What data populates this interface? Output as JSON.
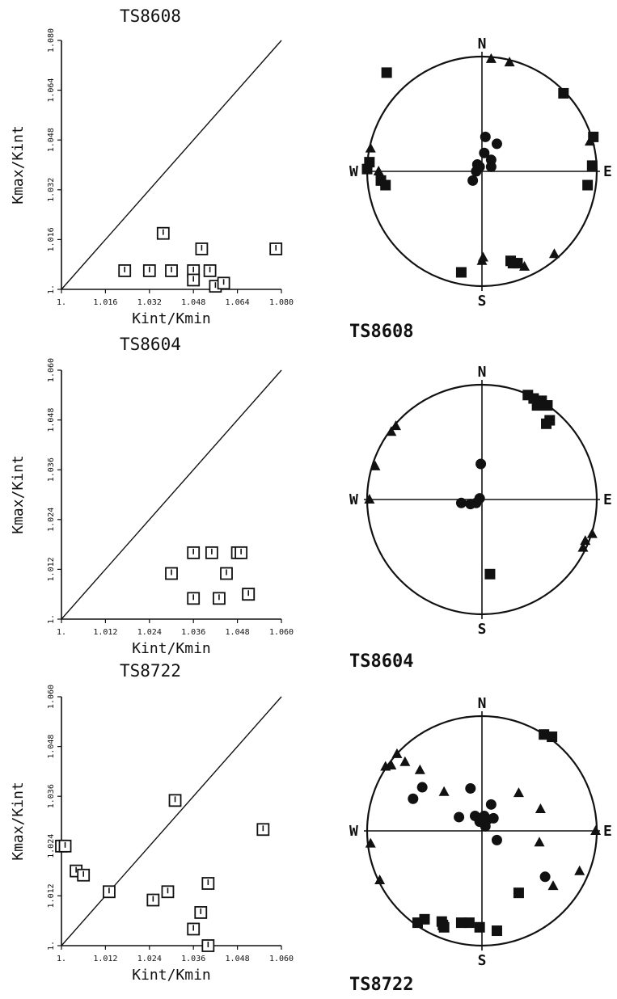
{
  "figure": {
    "plots": [
      {
        "title": "TS8608",
        "net_label": "TS8608"
      },
      {
        "title": "TS8604",
        "net_label": "TS8604"
      },
      {
        "title": "TS8722",
        "net_label": "TS8722"
      }
    ],
    "directions": {
      "n": "N",
      "s": "S",
      "e": "E",
      "w": "W"
    },
    "colors": {
      "ink": "#111111",
      "paper": "#ffffff"
    }
  },
  "chart_data": [
    {
      "type": "scatter",
      "title": "TS8608",
      "xlabel": "Kint/Kmin",
      "ylabel": "Kmax/Kint",
      "xlim": [
        1.0,
        1.08
      ],
      "ylim": [
        1.0,
        1.08
      ],
      "xticks": [
        "1.",
        "1.016",
        "1.032",
        "1.048",
        "1.064",
        "1.080"
      ],
      "yticks": [
        "1.",
        "1.016",
        "1.032",
        "1.048",
        "1.064",
        "1.080"
      ],
      "marker": "square",
      "reference_line": "y = x",
      "series": [
        {
          "x": [
            1.023,
            1.032,
            1.037,
            1.04,
            1.048,
            1.048,
            1.051,
            1.054,
            1.056,
            1.059,
            1.078
          ],
          "y": [
            1.006,
            1.006,
            1.018,
            1.006,
            1.006,
            1.003,
            1.013,
            1.006,
            1.001,
            1.002,
            1.013
          ]
        }
      ]
    },
    {
      "type": "scatter",
      "title": "TS8604",
      "xlabel": "Kint/Kmin",
      "ylabel": "Kmax/Kint",
      "xlim": [
        1.0,
        1.06
      ],
      "ylim": [
        1.0,
        1.06
      ],
      "xticks": [
        "1.",
        "1.012",
        "1.024",
        "1.036",
        "1.048",
        "1.060"
      ],
      "yticks": [
        "1.",
        "1.012",
        "1.024",
        "1.036",
        "1.048",
        "1.060"
      ],
      "marker": "square",
      "reference_line": "y = x",
      "series": [
        {
          "x": [
            1.03,
            1.036,
            1.036,
            1.041,
            1.043,
            1.045,
            1.048,
            1.049,
            1.051,
            1.051
          ],
          "y": [
            1.011,
            1.016,
            1.005,
            1.016,
            1.005,
            1.011,
            1.016,
            1.016,
            1.006,
            1.006
          ]
        }
      ]
    },
    {
      "type": "scatter",
      "title": "TS8722",
      "xlabel": "Kint/Kmin",
      "ylabel": "Kmax/Kint",
      "xlim": [
        1.0,
        1.06
      ],
      "ylim": [
        1.0,
        1.06
      ],
      "xticks": [
        "1.",
        "1.012",
        "1.024",
        "1.036",
        "1.048",
        "1.060"
      ],
      "yticks": [
        "1.",
        "1.012",
        "1.024",
        "1.036",
        "1.048",
        "1.060"
      ],
      "marker": "square",
      "reference_line": "y = x",
      "series": [
        {
          "x": [
            1.0,
            1.001,
            1.004,
            1.006,
            1.013,
            1.025,
            1.029,
            1.031,
            1.036,
            1.038,
            1.04,
            1.04,
            1.055
          ],
          "y": [
            1.024,
            1.024,
            1.018,
            1.017,
            1.013,
            1.011,
            1.013,
            1.035,
            1.004,
            1.008,
            1.015,
            1.0,
            1.028
          ]
        }
      ]
    },
    {
      "type": "stereonet",
      "title": "TS8608",
      "directions": [
        "N",
        "S",
        "E",
        "W"
      ],
      "series": [
        {
          "marker": "square",
          "points": [
            [
              -0.83,
              0.86
            ],
            [
              -0.98,
              0.08
            ],
            [
              -1.0,
              0.02
            ],
            [
              -0.88,
              -0.08
            ],
            [
              -0.84,
              -0.12
            ],
            [
              0.71,
              0.68
            ],
            [
              0.97,
              0.3
            ],
            [
              0.96,
              0.05
            ],
            [
              0.92,
              -0.12
            ],
            [
              -0.18,
              -0.88
            ],
            [
              0.25,
              -0.78
            ],
            [
              0.27,
              -0.8
            ],
            [
              0.31,
              -0.8
            ]
          ]
        },
        {
          "marker": "triangle",
          "points": [
            [
              0.08,
              0.98
            ],
            [
              0.24,
              0.95
            ],
            [
              -0.97,
              0.2
            ],
            [
              -0.9,
              0.0
            ],
            [
              0.94,
              0.26
            ],
            [
              0.0,
              -0.78
            ],
            [
              0.63,
              -0.72
            ],
            [
              0.37,
              -0.83
            ],
            [
              0.01,
              -0.75
            ]
          ]
        },
        {
          "marker": "circle",
          "points": [
            [
              0.03,
              0.3
            ],
            [
              0.13,
              0.24
            ],
            [
              0.02,
              0.16
            ],
            [
              0.08,
              0.1
            ],
            [
              -0.04,
              0.06
            ],
            [
              -0.05,
              0.0
            ],
            [
              0.08,
              0.04
            ],
            [
              -0.08,
              -0.08
            ],
            [
              -0.02,
              0.04
            ]
          ]
        }
      ]
    },
    {
      "type": "stereonet",
      "title": "TS8604",
      "directions": [
        "N",
        "S",
        "E",
        "W"
      ],
      "series": [
        {
          "marker": "square",
          "points": [
            [
              0.4,
              0.91
            ],
            [
              0.45,
              0.88
            ],
            [
              0.52,
              0.86
            ],
            [
              0.57,
              0.82
            ],
            [
              0.59,
              0.69
            ],
            [
              0.56,
              0.66
            ],
            [
              0.48,
              0.82
            ],
            [
              0.07,
              -0.65
            ]
          ]
        },
        {
          "marker": "triangle",
          "points": [
            [
              -0.75,
              0.64
            ],
            [
              -0.79,
              0.59
            ],
            [
              -0.93,
              0.29
            ],
            [
              -0.98,
              0.0
            ],
            [
              0.9,
              -0.36
            ],
            [
              0.88,
              -0.42
            ],
            [
              0.96,
              -0.3
            ]
          ]
        },
        {
          "marker": "circle",
          "points": [
            [
              -0.01,
              0.31
            ],
            [
              -0.18,
              -0.03
            ],
            [
              -0.1,
              -0.04
            ],
            [
              -0.05,
              -0.03
            ],
            [
              -0.02,
              0.01
            ]
          ]
        }
      ]
    },
    {
      "type": "stereonet",
      "title": "TS8722",
      "directions": [
        "N",
        "S",
        "E",
        "W"
      ],
      "series": [
        {
          "marker": "square",
          "points": [
            [
              0.54,
              0.84
            ],
            [
              0.61,
              0.82
            ],
            [
              0.32,
              -0.54
            ],
            [
              -0.56,
              -0.8
            ],
            [
              -0.5,
              -0.77
            ],
            [
              -0.33,
              -0.84
            ],
            [
              -0.35,
              -0.79
            ],
            [
              -0.18,
              -0.8
            ],
            [
              -0.11,
              -0.8
            ],
            [
              -0.02,
              -0.84
            ],
            [
              0.13,
              -0.87
            ],
            [
              -0.34,
              -0.82
            ]
          ]
        },
        {
          "marker": "triangle",
          "points": [
            [
              -0.74,
              0.67
            ],
            [
              -0.84,
              0.56
            ],
            [
              -0.79,
              0.57
            ],
            [
              -0.67,
              0.6
            ],
            [
              -0.54,
              0.53
            ],
            [
              -0.33,
              0.34
            ],
            [
              0.32,
              0.33
            ],
            [
              0.51,
              0.19
            ],
            [
              0.99,
              0.0
            ],
            [
              0.5,
              -0.1
            ],
            [
              0.85,
              -0.35
            ],
            [
              0.62,
              -0.48
            ],
            [
              -0.89,
              -0.43
            ],
            [
              -0.97,
              -0.11
            ]
          ]
        },
        {
          "marker": "circle",
          "points": [
            [
              -0.52,
              0.38
            ],
            [
              -0.6,
              0.28
            ],
            [
              -0.1,
              0.37
            ],
            [
              -0.2,
              0.12
            ],
            [
              0.08,
              0.23
            ],
            [
              -0.06,
              0.13
            ],
            [
              0.02,
              0.13
            ],
            [
              0.05,
              0.1
            ],
            [
              0.1,
              0.11
            ],
            [
              0.03,
              0.04
            ],
            [
              0.13,
              -0.08
            ],
            [
              0.55,
              -0.4
            ],
            [
              -0.02,
              0.08
            ]
          ]
        }
      ]
    }
  ]
}
